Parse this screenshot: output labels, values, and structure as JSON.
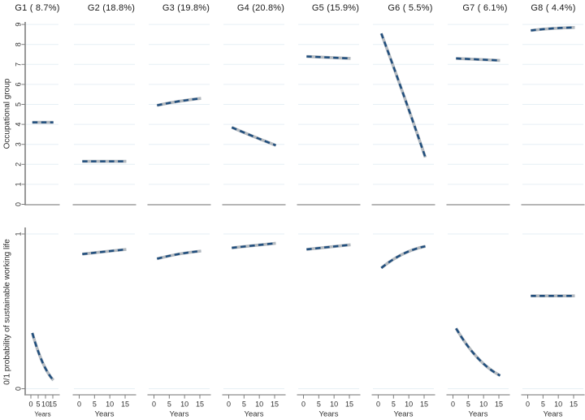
{
  "chart_data": {
    "type": "line",
    "title": "",
    "layout": "8 group columns x 2 outcome rows, small-multiple trajectory panels",
    "x": {
      "label": "Years",
      "ticks": [
        0,
        5,
        10,
        15
      ],
      "range": [
        0,
        15
      ]
    },
    "rows": [
      {
        "id": "occupational_group",
        "ylabel": "Occupational group",
        "ylim": [
          0,
          9
        ],
        "yticks": [
          0,
          1,
          2,
          3,
          4,
          5,
          6,
          7,
          8,
          9
        ],
        "gridlines": [
          1,
          2,
          3,
          4,
          5,
          6,
          7,
          8,
          9
        ]
      },
      {
        "id": "probability",
        "ylabel": "0/1 probability of sustainable working life",
        "ylim": [
          0,
          1
        ],
        "yticks": [
          0,
          1
        ],
        "gridlines": [
          0,
          1
        ]
      }
    ],
    "series_years": [
      1,
      8,
      15.4
    ],
    "groups": [
      {
        "label": "G1 ( 8.7%)",
        "occupational_group": [
          4.1,
          4.1,
          4.1
        ],
        "probability": [
          0.36,
          0.17,
          0.055
        ]
      },
      {
        "label": "G2 (18.8%)",
        "occupational_group": [
          2.15,
          2.15,
          2.15
        ],
        "probability": [
          0.87,
          0.885,
          0.9
        ]
      },
      {
        "label": "G3 (19.8%)",
        "occupational_group": [
          4.95,
          5.15,
          5.3
        ],
        "probability": [
          0.84,
          0.87,
          0.89
        ]
      },
      {
        "label": "G4 (20.8%)",
        "occupational_group": [
          3.85,
          3.4,
          2.95
        ],
        "probability": [
          0.91,
          0.925,
          0.94
        ]
      },
      {
        "label": "G5 (15.9%)",
        "occupational_group": [
          7.4,
          7.35,
          7.3
        ],
        "probability": [
          0.9,
          0.915,
          0.93
        ]
      },
      {
        "label": "G6 ( 5.5%)",
        "occupational_group": [
          8.55,
          5.6,
          2.35
        ],
        "probability": [
          0.78,
          0.87,
          0.92
        ]
      },
      {
        "label": "G7 ( 6.1%)",
        "occupational_group": [
          7.3,
          7.25,
          7.2
        ],
        "probability": [
          0.39,
          0.2,
          0.085
        ]
      },
      {
        "label": "G8 ( 4.4%)",
        "occupational_group": [
          8.7,
          8.8,
          8.85
        ],
        "probability": [
          0.6,
          0.6,
          0.6
        ]
      }
    ],
    "style": {
      "dash_color": "#204e7d",
      "band_color": "#b3b9bf",
      "grid_color": "#e6eff5",
      "axis_color": "#8a8a8a",
      "tick_color": "#7f7f7f",
      "text_color": "#303030",
      "background": "#ffffff"
    }
  }
}
